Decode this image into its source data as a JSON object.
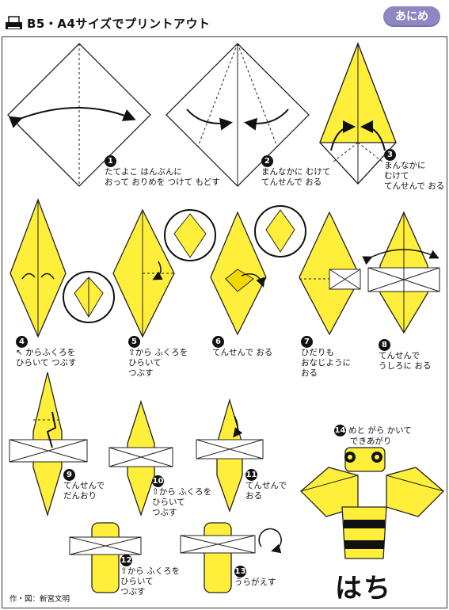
{
  "header": {
    "title": "B5・A4サイズでプリントアウト",
    "anime_button": "あにめ"
  },
  "steps": [
    {
      "num": "1",
      "lines": [
        "たてよこ はんぶんに",
        "おって おりめを つけて もどす"
      ]
    },
    {
      "num": "2",
      "lines": [
        "まんなかに むけて",
        "てんせんで おる"
      ]
    },
    {
      "num": "3",
      "lines": [
        "まんなかに",
        "むけて",
        "てんせんで おる"
      ]
    },
    {
      "num": "4",
      "lines": [
        "↖ からふくろを",
        "ひらいて つぶす"
      ]
    },
    {
      "num": "5",
      "lines": [
        "⇧から ふくろを",
        "ひらいて",
        "つぶす"
      ]
    },
    {
      "num": "6",
      "lines": [
        "てんせんで おる"
      ]
    },
    {
      "num": "7",
      "lines": [
        "ひだりも",
        "おなじように",
        "おる"
      ]
    },
    {
      "num": "8",
      "lines": [
        "てんせんで",
        "うしろに おる"
      ]
    },
    {
      "num": "9",
      "lines": [
        "てんせんで",
        "だんおり"
      ]
    },
    {
      "num": "10",
      "lines": [
        "⇧から ふくろを",
        "ひらいて",
        "つぶす"
      ]
    },
    {
      "num": "11",
      "lines": [
        "てんせんで",
        "おる"
      ]
    },
    {
      "num": "12",
      "lines": [
        "⇧から ふくろを",
        "ひらいて",
        "つぶす"
      ]
    },
    {
      "num": "13",
      "lines": [
        "うらがえす"
      ]
    },
    {
      "num": "14",
      "lines": [
        "めと がら かいて",
        "できあがり"
      ]
    }
  ],
  "result_title": "はち",
  "credit": "作・図：新宮文明",
  "colors": {
    "paper": "#ffef3a",
    "paper_dark": "#f2d800",
    "white_side": "#ffffff",
    "line": "#222222",
    "accent": "#8d87c4"
  }
}
